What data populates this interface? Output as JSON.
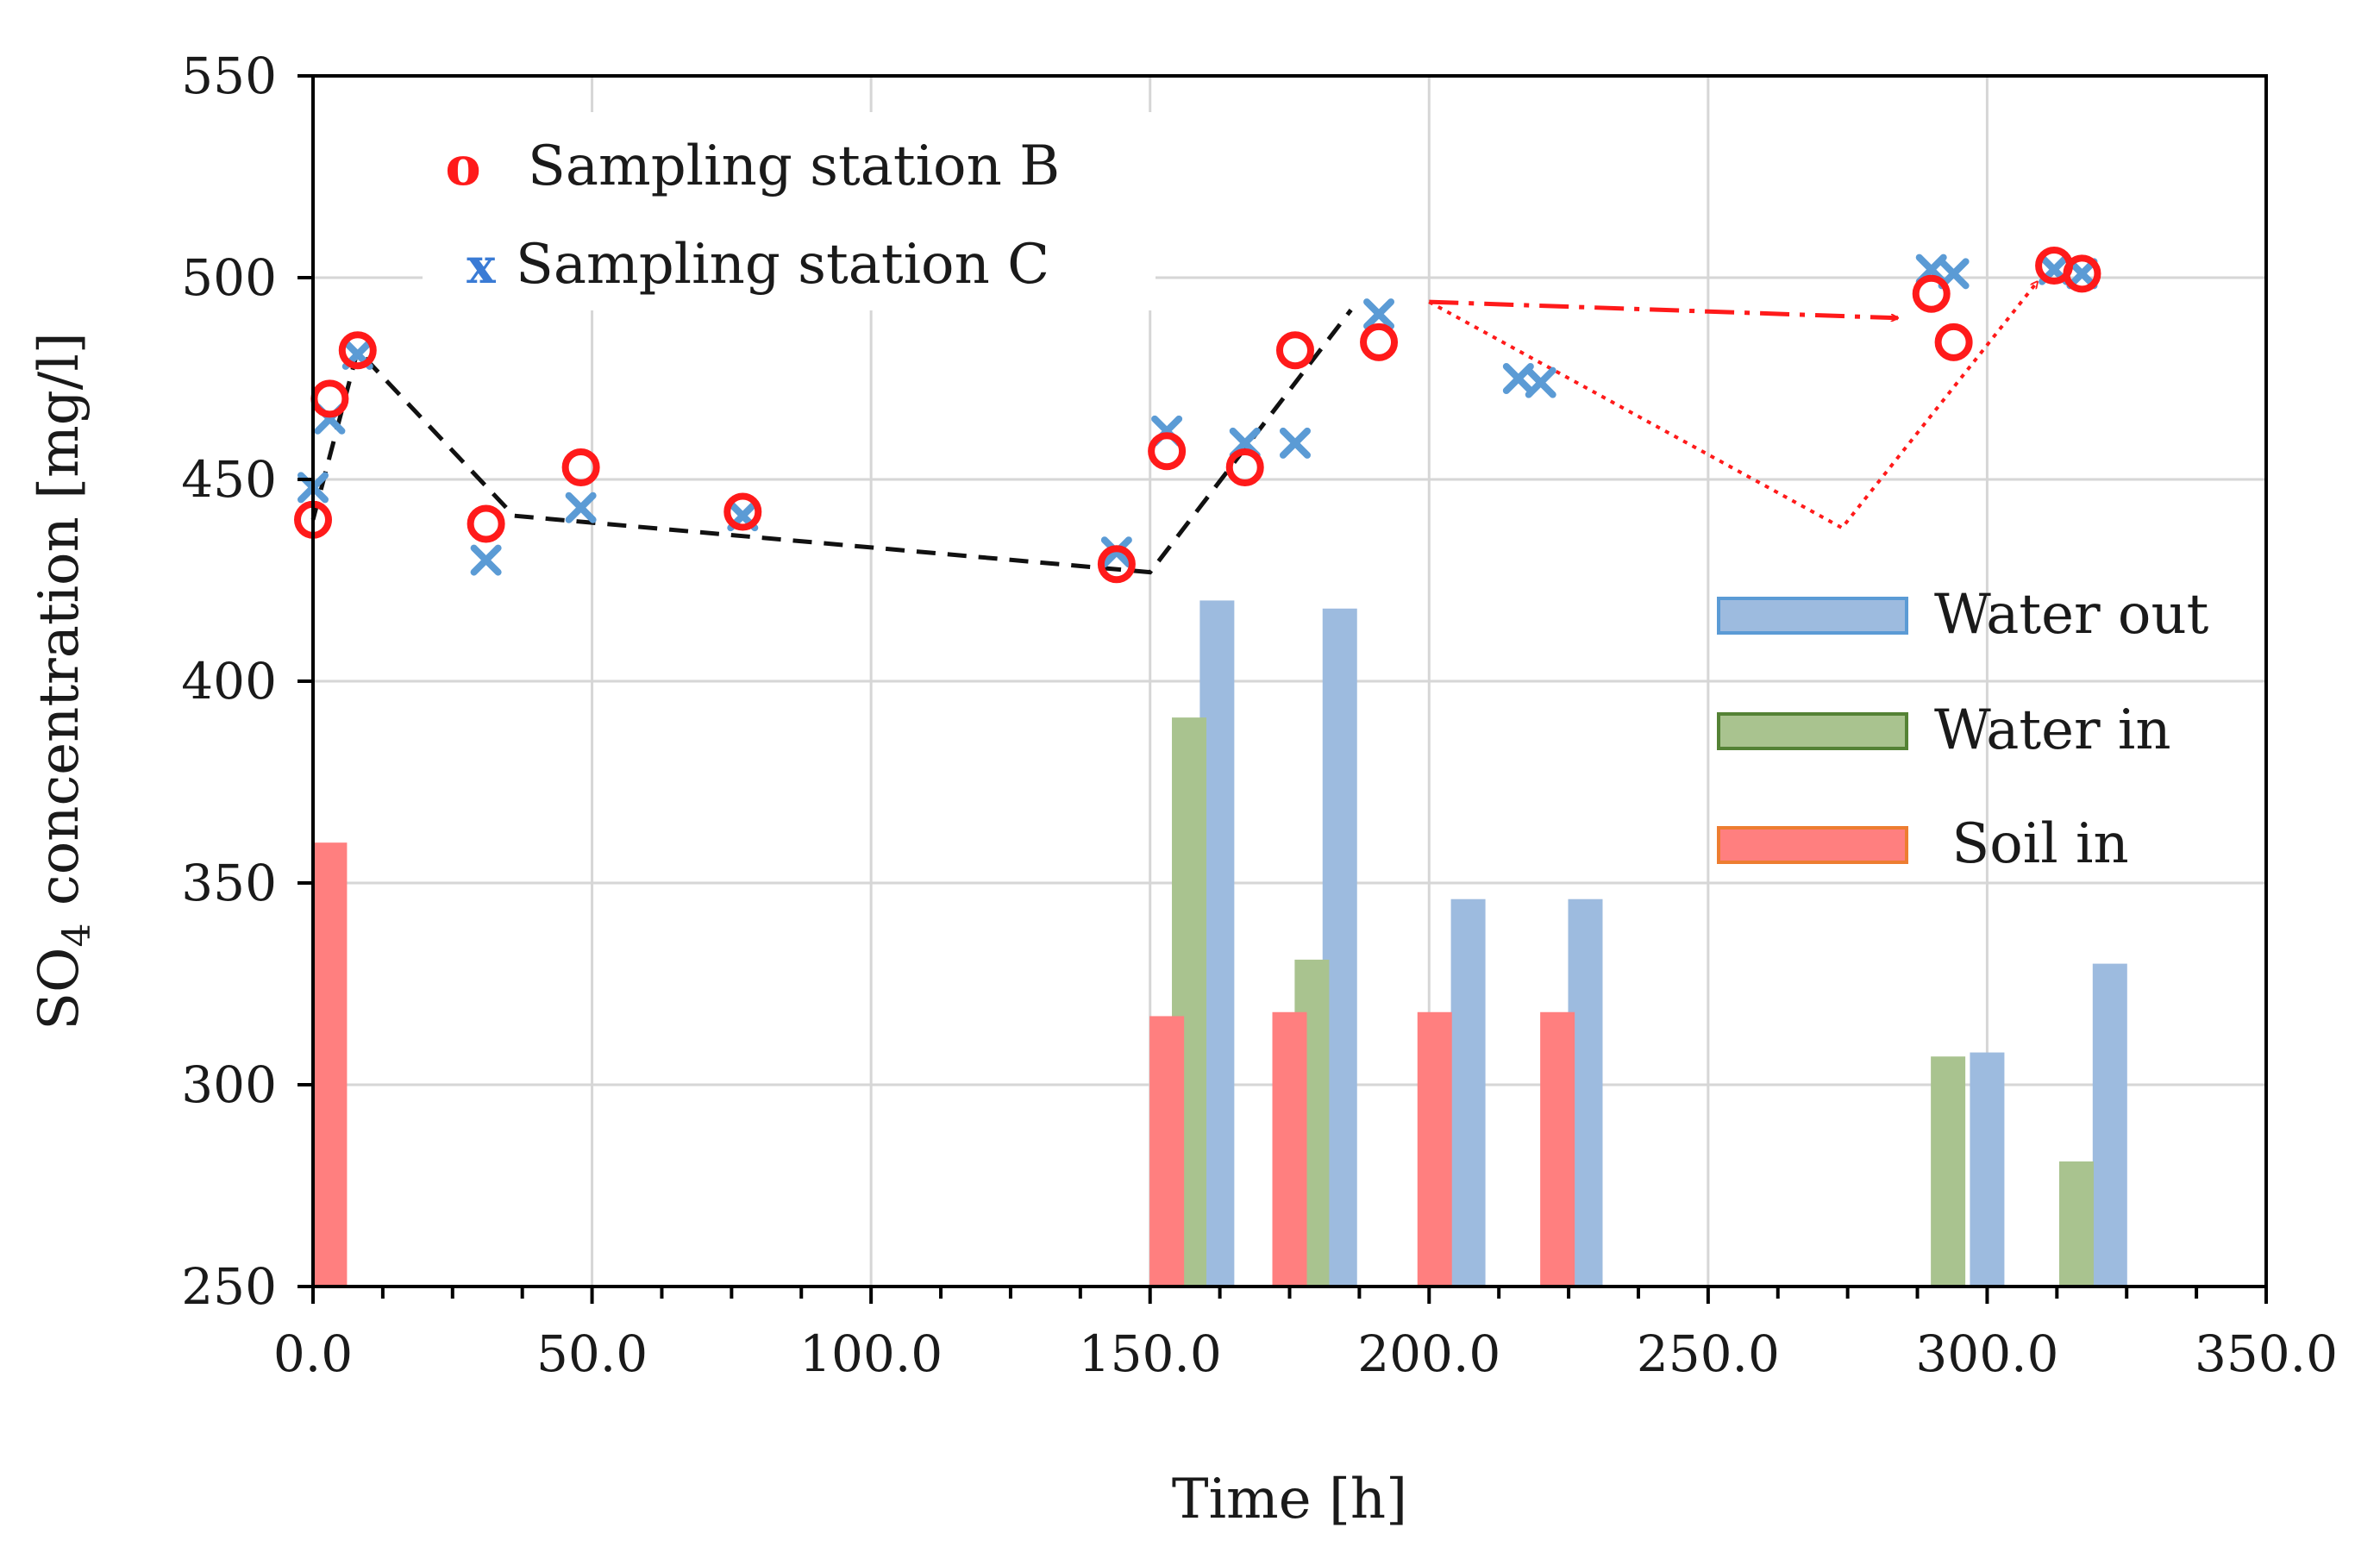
{
  "chart_data": {
    "type": "bar+scatter",
    "xlabel": "Time [h]",
    "ylabel_main": "SO",
    "ylabel_sub": "4",
    "ylabel_rest": " concentration [mg/l]",
    "xlim": [
      0,
      350
    ],
    "ylim": [
      250,
      550
    ],
    "x_ticks": [
      "0.0",
      "50.0",
      "100.0",
      "150.0",
      "200.0",
      "250.0",
      "300.0",
      "350.0"
    ],
    "y_ticks": [
      "250",
      "300",
      "350",
      "400",
      "450",
      "500",
      "550"
    ],
    "grid": true,
    "colors": {
      "station_b": "#ff1a1a",
      "station_c": "#5b9bd5",
      "water_out": "#9dbbdf",
      "water_out_border": "#5b9bd5",
      "water_in": "#a9c38f",
      "water_in_border": "#548235",
      "soil_in": "#ff7f7f",
      "soil_in_border": "#ed7d31",
      "trend": "#111111",
      "arrow": "#ff1a1a"
    },
    "scatter_legend": [
      {
        "symbol": "o",
        "label": "Sampling station B"
      },
      {
        "symbol": "x",
        "label": "Sampling station C"
      }
    ],
    "bar_legend": [
      {
        "label": "Water out"
      },
      {
        "label": "Water in"
      },
      {
        "label": " Soil in"
      }
    ],
    "series": [
      {
        "name": "Sampling station B",
        "marker": "circle",
        "points": [
          [
            0,
            440
          ],
          [
            3,
            470
          ],
          [
            8,
            482
          ],
          [
            31,
            439
          ],
          [
            48,
            453
          ],
          [
            77,
            442
          ],
          [
            144,
            429
          ],
          [
            153,
            457
          ],
          [
            167,
            453
          ],
          [
            176,
            482
          ],
          [
            191,
            484
          ],
          [
            290,
            496
          ],
          [
            294,
            484
          ],
          [
            312,
            503
          ],
          [
            317,
            501
          ]
        ]
      },
      {
        "name": "Sampling station C",
        "marker": "x",
        "points": [
          [
            0,
            448
          ],
          [
            3,
            465
          ],
          [
            8,
            481
          ],
          [
            31,
            430
          ],
          [
            48,
            443
          ],
          [
            77,
            441
          ],
          [
            144,
            432
          ],
          [
            153,
            462
          ],
          [
            167,
            459
          ],
          [
            176,
            459
          ],
          [
            191,
            491
          ],
          [
            216,
            475
          ],
          [
            220,
            474
          ],
          [
            290,
            502
          ],
          [
            294,
            501
          ],
          [
            312,
            502
          ],
          [
            317,
            501
          ]
        ]
      },
      {
        "name": "Water out",
        "type": "bar",
        "points": [
          [
            162,
            420
          ],
          [
            184,
            418
          ],
          [
            207,
            346
          ],
          [
            228,
            346
          ],
          [
            300,
            308
          ],
          [
            322,
            330
          ]
        ]
      },
      {
        "name": "Water in",
        "type": "bar",
        "points": [
          [
            157,
            391
          ],
          [
            179,
            331
          ],
          [
            293,
            307
          ],
          [
            316,
            281
          ]
        ]
      },
      {
        "name": "Soil in",
        "type": "bar",
        "points": [
          [
            3,
            360
          ],
          [
            153,
            317
          ],
          [
            175,
            318
          ],
          [
            201,
            318
          ],
          [
            223,
            318
          ]
        ]
      },
      {
        "name": "trend",
        "type": "dashed-line",
        "points": [
          [
            0,
            440
          ],
          [
            8,
            482
          ],
          [
            36,
            441
          ],
          [
            150,
            427
          ],
          [
            186,
            492
          ]
        ]
      },
      {
        "name": "dash-dot arrow",
        "type": "arrow",
        "points": [
          [
            200,
            494
          ],
          [
            284,
            490
          ]
        ]
      },
      {
        "name": "dotted arrow",
        "type": "arrow",
        "points": [
          [
            200,
            494
          ],
          [
            274,
            438
          ],
          [
            309,
            499
          ]
        ]
      }
    ]
  }
}
